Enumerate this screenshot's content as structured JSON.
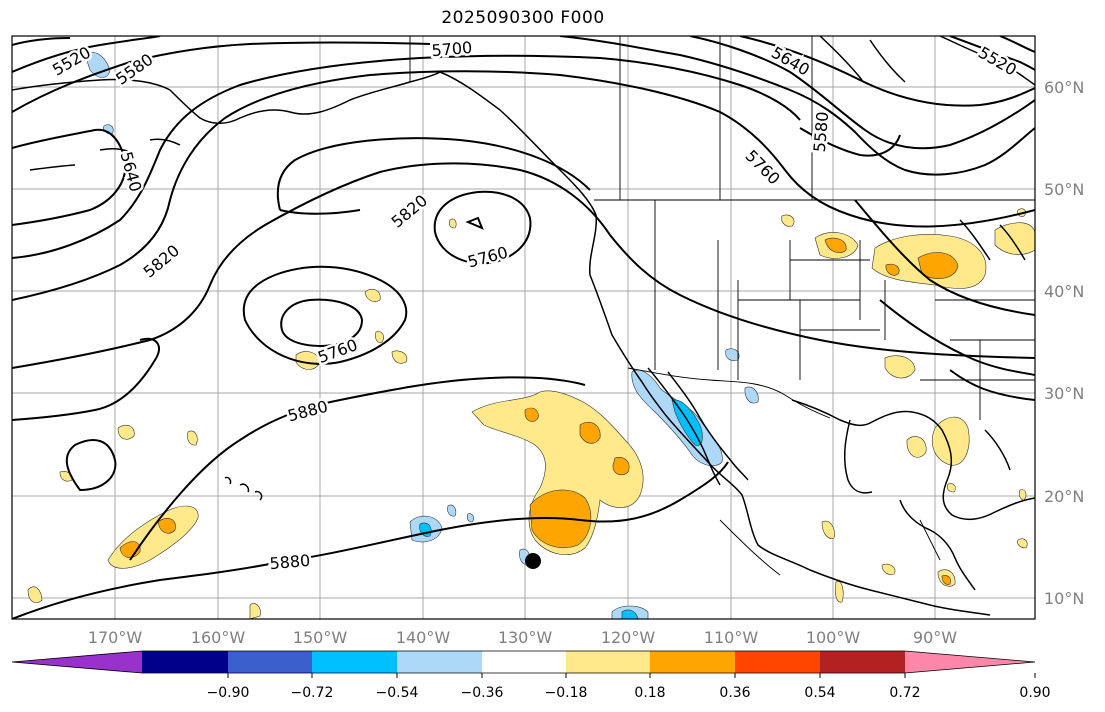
{
  "title": "2025090300 F000",
  "map": {
    "lon_labels": [
      "170°W",
      "160°W",
      "150°W",
      "140°W",
      "130°W",
      "120°W",
      "110°W",
      "100°W",
      "90°W"
    ],
    "lat_labels": [
      "60°N",
      "50°N",
      "40°N",
      "30°N",
      "20°N",
      "10°N"
    ],
    "contour_labels": [
      {
        "text": "5520",
        "id": "c5520-nw"
      },
      {
        "text": "5580",
        "id": "c5580-nw"
      },
      {
        "text": "5700",
        "id": "c5700-n"
      },
      {
        "text": "5640",
        "id": "c5640-ne"
      },
      {
        "text": "5520",
        "id": "c5520-ne"
      },
      {
        "text": "5640",
        "id": "c5640-w"
      },
      {
        "text": "5580",
        "id": "c5580-ne"
      },
      {
        "text": "5760",
        "id": "c5760-ne"
      },
      {
        "text": "5820",
        "id": "c5820-center"
      },
      {
        "text": "5760",
        "id": "c5760-center"
      },
      {
        "text": "5820",
        "id": "c5820-w"
      },
      {
        "text": "5760",
        "id": "c5760-sw"
      },
      {
        "text": "5880",
        "id": "c5880-mid"
      },
      {
        "text": "5880",
        "id": "c5880-s"
      }
    ]
  },
  "colorbar": {
    "ticks": [
      "−0.90",
      "−0.72",
      "−0.54",
      "−0.36",
      "−0.18",
      "0.18",
      "0.36",
      "0.54",
      "0.72",
      "0.90"
    ],
    "colors": [
      "#9932cc",
      "#00008b",
      "#3a5fcd",
      "#00bfff",
      "#add8f7",
      "#ffffff",
      "#ffe98a",
      "#ffa500",
      "#ff4500",
      "#b22222",
      "#ff88aa"
    ]
  }
}
